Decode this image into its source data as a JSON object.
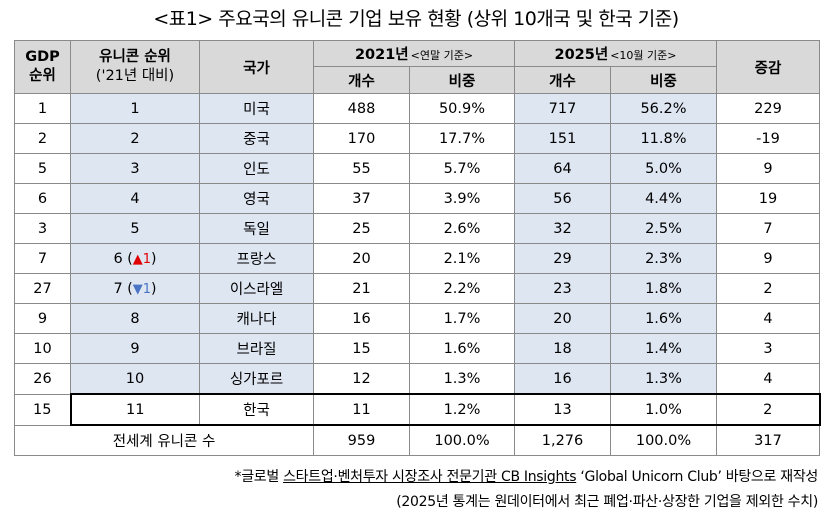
{
  "title": "<표1> 주요국의 유니콘 기업 보유 현황 (상위 10개국 및 한국 기준)",
  "headers": {
    "gdp_rank_line1": "GDP",
    "gdp_rank_line2": "순위",
    "unicorn_rank_line1": "유니콘 순위",
    "unicorn_rank_line2": "('21년 대비)",
    "country": "국가",
    "y2021": "2021년",
    "y2021_note": "<연말 기준>",
    "y2025": "2025년",
    "y2025_note": "<10월 기준>",
    "change": "증감",
    "count": "개수",
    "share": "비중"
  },
  "rows": [
    {
      "gdp": "1",
      "rank": "1",
      "arrow": "",
      "arrow_num": "",
      "country": "미국",
      "c2021": "488",
      "s2021": "50.9%",
      "c2025": "717",
      "s2025": "56.2%",
      "change": "229"
    },
    {
      "gdp": "2",
      "rank": "2",
      "arrow": "",
      "arrow_num": "",
      "country": "중국",
      "c2021": "170",
      "s2021": "17.7%",
      "c2025": "151",
      "s2025": "11.8%",
      "change": "-19"
    },
    {
      "gdp": "5",
      "rank": "3",
      "arrow": "",
      "arrow_num": "",
      "country": "인도",
      "c2021": "55",
      "s2021": "5.7%",
      "c2025": "64",
      "s2025": "5.0%",
      "change": "9"
    },
    {
      "gdp": "6",
      "rank": "4",
      "arrow": "",
      "arrow_num": "",
      "country": "영국",
      "c2021": "37",
      "s2021": "3.9%",
      "c2025": "56",
      "s2025": "4.4%",
      "change": "19"
    },
    {
      "gdp": "3",
      "rank": "5",
      "arrow": "",
      "arrow_num": "",
      "country": "독일",
      "c2021": "25",
      "s2021": "2.6%",
      "c2025": "32",
      "s2025": "2.5%",
      "change": "7"
    },
    {
      "gdp": "7",
      "rank": "6",
      "arrow": "▲",
      "arrow_num": "1",
      "country": "프랑스",
      "c2021": "20",
      "s2021": "2.1%",
      "c2025": "29",
      "s2025": "2.3%",
      "change": "9"
    },
    {
      "gdp": "27",
      "rank": "7",
      "arrow": "▼",
      "arrow_num": "1",
      "country": "이스라엘",
      "c2021": "21",
      "s2021": "2.2%",
      "c2025": "23",
      "s2025": "1.8%",
      "change": "2"
    },
    {
      "gdp": "9",
      "rank": "8",
      "arrow": "",
      "arrow_num": "",
      "country": "캐나다",
      "c2021": "16",
      "s2021": "1.7%",
      "c2025": "20",
      "s2025": "1.6%",
      "change": "4"
    },
    {
      "gdp": "10",
      "rank": "9",
      "arrow": "",
      "arrow_num": "",
      "country": "브라질",
      "c2021": "15",
      "s2021": "1.6%",
      "c2025": "18",
      "s2025": "1.4%",
      "change": "3"
    },
    {
      "gdp": "26",
      "rank": "10",
      "arrow": "",
      "arrow_num": "",
      "country": "싱가포르",
      "c2021": "12",
      "s2021": "1.3%",
      "c2025": "16",
      "s2025": "1.3%",
      "change": "4"
    }
  ],
  "korea": {
    "gdp": "15",
    "rank": "11",
    "country": "한국",
    "c2021": "11",
    "s2021": "1.2%",
    "c2025": "13",
    "s2025": "1.0%",
    "change": "2"
  },
  "total": {
    "label": "전세계 유니콘 수",
    "c2021": "959",
    "s2021": "100.0%",
    "c2025": "1,276",
    "s2025": "100.0%",
    "change": "317"
  },
  "notes": {
    "line1_prefix": "*글로벌 ",
    "line1_underlined": "스타트업·벤처투자 시장조사 전문기관 CB Insights",
    "line1_suffix": " ‘Global Unicorn Club’ 바탕으로 재작성",
    "line2": "(2025년 통계는 원데이터에서 최근 폐업·파산·상장한 기업을 제외한 수치)"
  }
}
